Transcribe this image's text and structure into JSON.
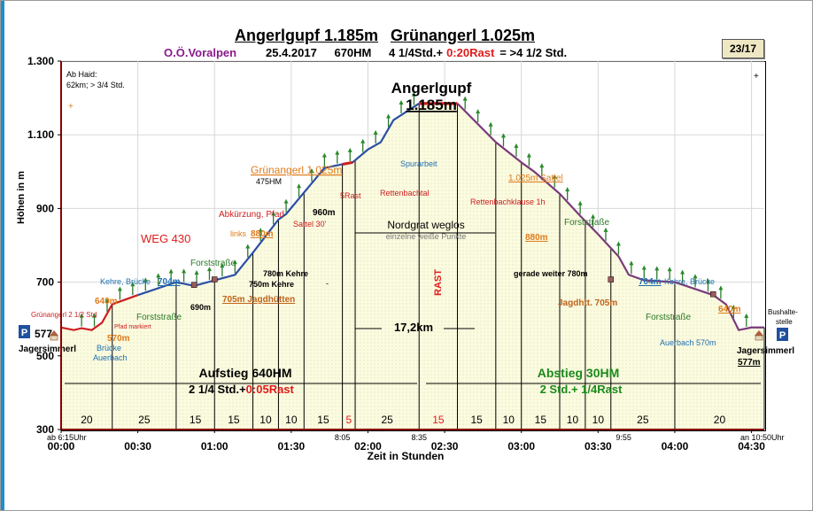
{
  "header": {
    "title_1": "Angerlgupf 1.185m",
    "title_2": "Grünangerl 1.025m",
    "region": "O.Ö.Voralpen",
    "date": "25.4.2017",
    "hm": "670HM",
    "duration": "4 1/4Std.+",
    "rast": "0:20Rast",
    "total": "= >4 1/2  Std.",
    "badge": "23/17"
  },
  "chart_data": {
    "type": "area",
    "ylabel": "Höhen in m",
    "xlabel": "Zeit in  Stunden",
    "ylim": [
      300,
      1300
    ],
    "xlim": [
      0,
      275
    ],
    "y_ticks": [
      "300",
      "500",
      "700",
      "900",
      "1.100",
      "1.300"
    ],
    "y_tick_values": [
      300,
      500,
      700,
      900,
      1100,
      1300
    ],
    "x_ticks": [
      "00:00",
      "00:30",
      "01:00",
      "01:30",
      "02:00",
      "02:30",
      "03:00",
      "03:30",
      "04:00",
      "04:30"
    ],
    "x_tick_minutes": [
      0,
      30,
      60,
      90,
      120,
      150,
      180,
      210,
      240,
      270
    ],
    "x": [
      0,
      5,
      8,
      12,
      16,
      20,
      30,
      45,
      52,
      60,
      68,
      75,
      85,
      88,
      97,
      103,
      110,
      114,
      120,
      125,
      130,
      140,
      155,
      170,
      180,
      185,
      195,
      203,
      210,
      218,
      222,
      228,
      240,
      255,
      260,
      265,
      270,
      275
    ],
    "y": [
      577,
      570,
      575,
      570,
      590,
      640,
      665,
      700,
      690,
      705,
      720,
      780,
      870,
      885,
      960,
      1010,
      1020,
      1025,
      1060,
      1080,
      1140,
      1185,
      1185,
      1080,
      1025,
      1000,
      940,
      880,
      830,
      770,
      720,
      705,
      700,
      665,
      640,
      570,
      577,
      577
    ],
    "series": [
      {
        "name": "Aufstieg",
        "color": "#2c4fa0"
      },
      {
        "name": "Abstieg",
        "color": "#7a3a7a"
      }
    ],
    "rast_segments": [
      [
        110,
        115
      ],
      [
        140,
        155
      ]
    ],
    "segments": {
      "minutes": [
        "20",
        "25",
        "15",
        "15",
        "10",
        "10",
        "15",
        "5",
        "25",
        "15",
        "15",
        "10",
        "15",
        "10",
        "10",
        "25",
        "20"
      ],
      "boundaries": [
        0,
        20,
        45,
        60,
        75,
        85,
        95,
        110,
        115,
        140,
        155,
        170,
        180,
        195,
        205,
        215,
        240,
        275
      ],
      "rast_flags": [
        false,
        false,
        false,
        false,
        false,
        false,
        false,
        true,
        false,
        true,
        false,
        false,
        false,
        false,
        false,
        false,
        false
      ]
    },
    "annotations": {
      "top_left_note_1": "Ab Haid:",
      "top_left_note_2": "62km; > 3/4 Std.",
      "peak_title_1": "Angerlgupf",
      "peak_title_2": "1.185m",
      "gruenangerl": "Grünangerl 1.025m",
      "hm475": "475HM",
      "rettenbachtal": "Rettenbachtal",
      "rast5": "5Rast",
      "spurarbeit": "Spurarbeit",
      "sattel1025": "1.025m Sattel",
      "rettenbachklause": "Rettenbachklause 1h",
      "abkuerzung": "Abkürzung, Pfad",
      "sattel30": "Sattel 30'",
      "links880": "links",
      "m880": "880m",
      "m960": "960m",
      "nordgrat": "Nordgrat weglos",
      "weisse": "einzelne weiße Punkte",
      "forststrasse_r": "Forststraße",
      "m880_r": "880m",
      "weg430": "WEG 430",
      "forststrasse_l": "Forststraße",
      "kehre_bruecke_l": "Kehre, Brücke",
      "m704_l": "704m",
      "m780_kehre": "780m Kehre",
      "m750_kehre": "750m  Kehre",
      "dash": "-",
      "gerade_weiter": "gerade weiter 780m",
      "m704_r": "704m",
      "kehre_bruecke_r": "Kehre, Brücke",
      "m640_l": "640m",
      "gruenangerl_std": "Grünangerl 2 1/2 Std",
      "forststrasse_l2": "Forststraße",
      "m690": "690m",
      "jagdhuetten": "705m Jagdhütten",
      "jagdhtt": "Jagdhtt. 705m",
      "forststrasse_r2": "Forststraße",
      "m640_r": "640m",
      "pfad_markiert": "Pfad markiert",
      "m570_l": "570m",
      "bruecke_l1": "Brücke",
      "bruecke_l2": "Auerbach",
      "auerbach_r": "Auerbach 570m",
      "bushalte_1": "Bushalte-",
      "bushalte_2": "stelle",
      "rast_vertical": "RAST",
      "distance": "17,2km",
      "jagersimmerl_l": "Jagersimmerl",
      "jagersimmerl_r": "Jagersimmerl",
      "m577_r": "577m",
      "start_elev": "577",
      "aufstieg_1": "Aufstieg 640HM",
      "aufstieg_2": "2 1/4 Std.+",
      "aufstieg_rast": "0:05Rast",
      "abstieg_1": "Abstieg 30HM",
      "abstieg_2": "2 Std.+ 1/4Rast",
      "time_start": "ab 6:15Uhr",
      "time_805": "8:05",
      "time_835": "8:35",
      "time_955": "9:55",
      "time_end": "an 10:50Uhr",
      "parking_l": "P",
      "parking_r": "P",
      "plus_tr": "+",
      "plus_tl": "+"
    }
  }
}
